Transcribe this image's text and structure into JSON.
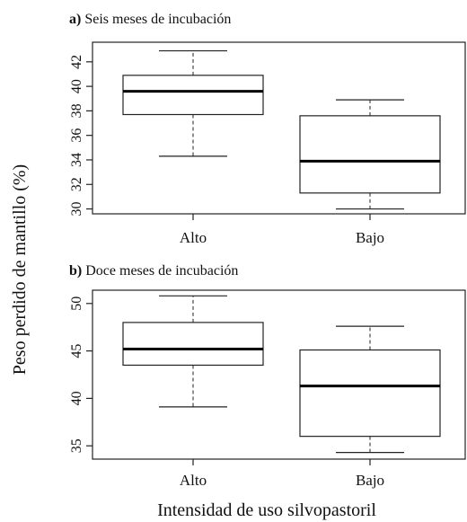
{
  "figure": {
    "ylabel": "Peso perdido de mantillo (%)",
    "xlabel": "Intensidad de uso silvopastoril"
  },
  "chart_data": [
    {
      "type": "boxplot",
      "panel_letter": "a)",
      "title": "Seis meses de incubación",
      "categories": [
        "Alto",
        "Bajo"
      ],
      "ylim": [
        29.6,
        43.6
      ],
      "yticks": [
        30,
        32,
        34,
        36,
        38,
        40,
        42
      ],
      "boxes": [
        {
          "category": "Alto",
          "min": 34.3,
          "q1": 37.7,
          "median": 39.6,
          "q3": 40.9,
          "max": 42.9
        },
        {
          "category": "Bajo",
          "min": 30.0,
          "q1": 31.3,
          "median": 33.9,
          "q3": 37.6,
          "max": 38.9
        }
      ],
      "grid": false
    },
    {
      "type": "boxplot",
      "panel_letter": "b)",
      "title": "Doce meses de incubación",
      "categories": [
        "Alto",
        "Bajo"
      ],
      "ylim": [
        33.6,
        51.4
      ],
      "yticks": [
        35,
        40,
        45,
        50
      ],
      "boxes": [
        {
          "category": "Alto",
          "min": 39.1,
          "q1": 43.5,
          "median": 45.2,
          "q3": 48.0,
          "max": 50.8
        },
        {
          "category": "Bajo",
          "min": 34.3,
          "q1": 36.0,
          "median": 41.3,
          "q3": 45.1,
          "max": 47.6
        }
      ],
      "grid": false
    }
  ]
}
